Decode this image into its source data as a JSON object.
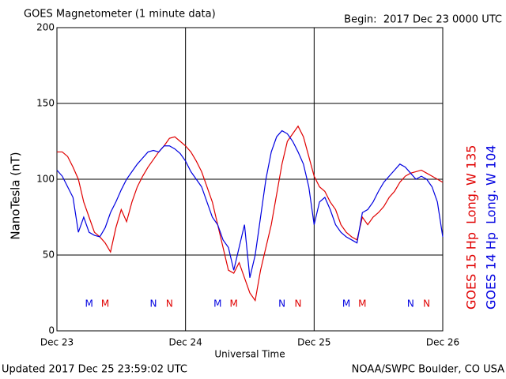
{
  "chart_data": {
    "type": "line",
    "title": "GOES Magnetometer (1 minute data)",
    "subtitle": "Begin:  2017 Dec 23 0000 UTC",
    "x_label": "Universal Time",
    "y_label": "NanoTesla (nT)",
    "footer_left": "Updated 2017 Dec 25 23:59:02 UTC",
    "footer_right": "NOAA/SWPC Boulder, CO USA",
    "xlim": [
      0,
      72
    ],
    "xticks": [
      {
        "value": 0,
        "label": "Dec 23"
      },
      {
        "value": 24,
        "label": "Dec 24"
      },
      {
        "value": 48,
        "label": "Dec 25"
      },
      {
        "value": 72,
        "label": "Dec 26"
      }
    ],
    "ylim": [
      0,
      200
    ],
    "yticks": [
      0,
      50,
      100,
      150,
      200
    ],
    "grid": true,
    "x": [
      0,
      1,
      2,
      3,
      4,
      5,
      6,
      7,
      8,
      9,
      10,
      11,
      12,
      13,
      14,
      15,
      16,
      17,
      18,
      19,
      20,
      21,
      22,
      23,
      24,
      25,
      26,
      27,
      28,
      29,
      30,
      31,
      32,
      33,
      34,
      35,
      36,
      37,
      38,
      39,
      40,
      41,
      42,
      43,
      44,
      45,
      46,
      47,
      48,
      49,
      50,
      51,
      52,
      53,
      54,
      55,
      56,
      57,
      58,
      59,
      60,
      61,
      62,
      63,
      64,
      65,
      66,
      67,
      68,
      69,
      70,
      71,
      72
    ],
    "series": [
      {
        "name": "GOES 15 Hp  Long. W 135",
        "color": "#e00000",
        "values": [
          118,
          118,
          115,
          108,
          100,
          85,
          75,
          65,
          62,
          58,
          52,
          68,
          80,
          72,
          85,
          95,
          102,
          108,
          113,
          118,
          122,
          127,
          128,
          125,
          122,
          118,
          112,
          105,
          95,
          85,
          70,
          55,
          40,
          38,
          45,
          35,
          25,
          20,
          40,
          55,
          70,
          90,
          110,
          125,
          130,
          135,
          128,
          115,
          102,
          95,
          92,
          85,
          80,
          70,
          65,
          62,
          60,
          75,
          70,
          75,
          78,
          82,
          88,
          92,
          98,
          102,
          104,
          105,
          106,
          104,
          102,
          100,
          98
        ]
      },
      {
        "name": "GOES 14 Hp  Long. W 104",
        "color": "#0000e0",
        "values": [
          106,
          102,
          95,
          88,
          65,
          75,
          65,
          63,
          62,
          68,
          78,
          85,
          93,
          100,
          105,
          110,
          114,
          118,
          119,
          118,
          122,
          122,
          120,
          117,
          112,
          105,
          100,
          95,
          85,
          75,
          70,
          60,
          55,
          40,
          55,
          70,
          35,
          50,
          75,
          100,
          118,
          128,
          132,
          130,
          125,
          118,
          110,
          95,
          70,
          85,
          88,
          80,
          70,
          65,
          62,
          60,
          58,
          78,
          80,
          85,
          92,
          98,
          102,
          106,
          110,
          108,
          104,
          100,
          102,
          100,
          95,
          85,
          62
        ]
      }
    ],
    "annotations": [
      {
        "text": "M",
        "x": 6,
        "color": "#0000e0"
      },
      {
        "text": "M",
        "x": 9,
        "color": "#e00000"
      },
      {
        "text": "N",
        "x": 18,
        "color": "#0000e0"
      },
      {
        "text": "N",
        "x": 21,
        "color": "#e00000"
      },
      {
        "text": "M",
        "x": 30,
        "color": "#0000e0"
      },
      {
        "text": "M",
        "x": 33,
        "color": "#e00000"
      },
      {
        "text": "N",
        "x": 42,
        "color": "#0000e0"
      },
      {
        "text": "N",
        "x": 45,
        "color": "#e00000"
      },
      {
        "text": "M",
        "x": 54,
        "color": "#0000e0"
      },
      {
        "text": "M",
        "x": 57,
        "color": "#e00000"
      },
      {
        "text": "N",
        "x": 66,
        "color": "#0000e0"
      },
      {
        "text": "N",
        "x": 69,
        "color": "#e00000"
      }
    ]
  }
}
